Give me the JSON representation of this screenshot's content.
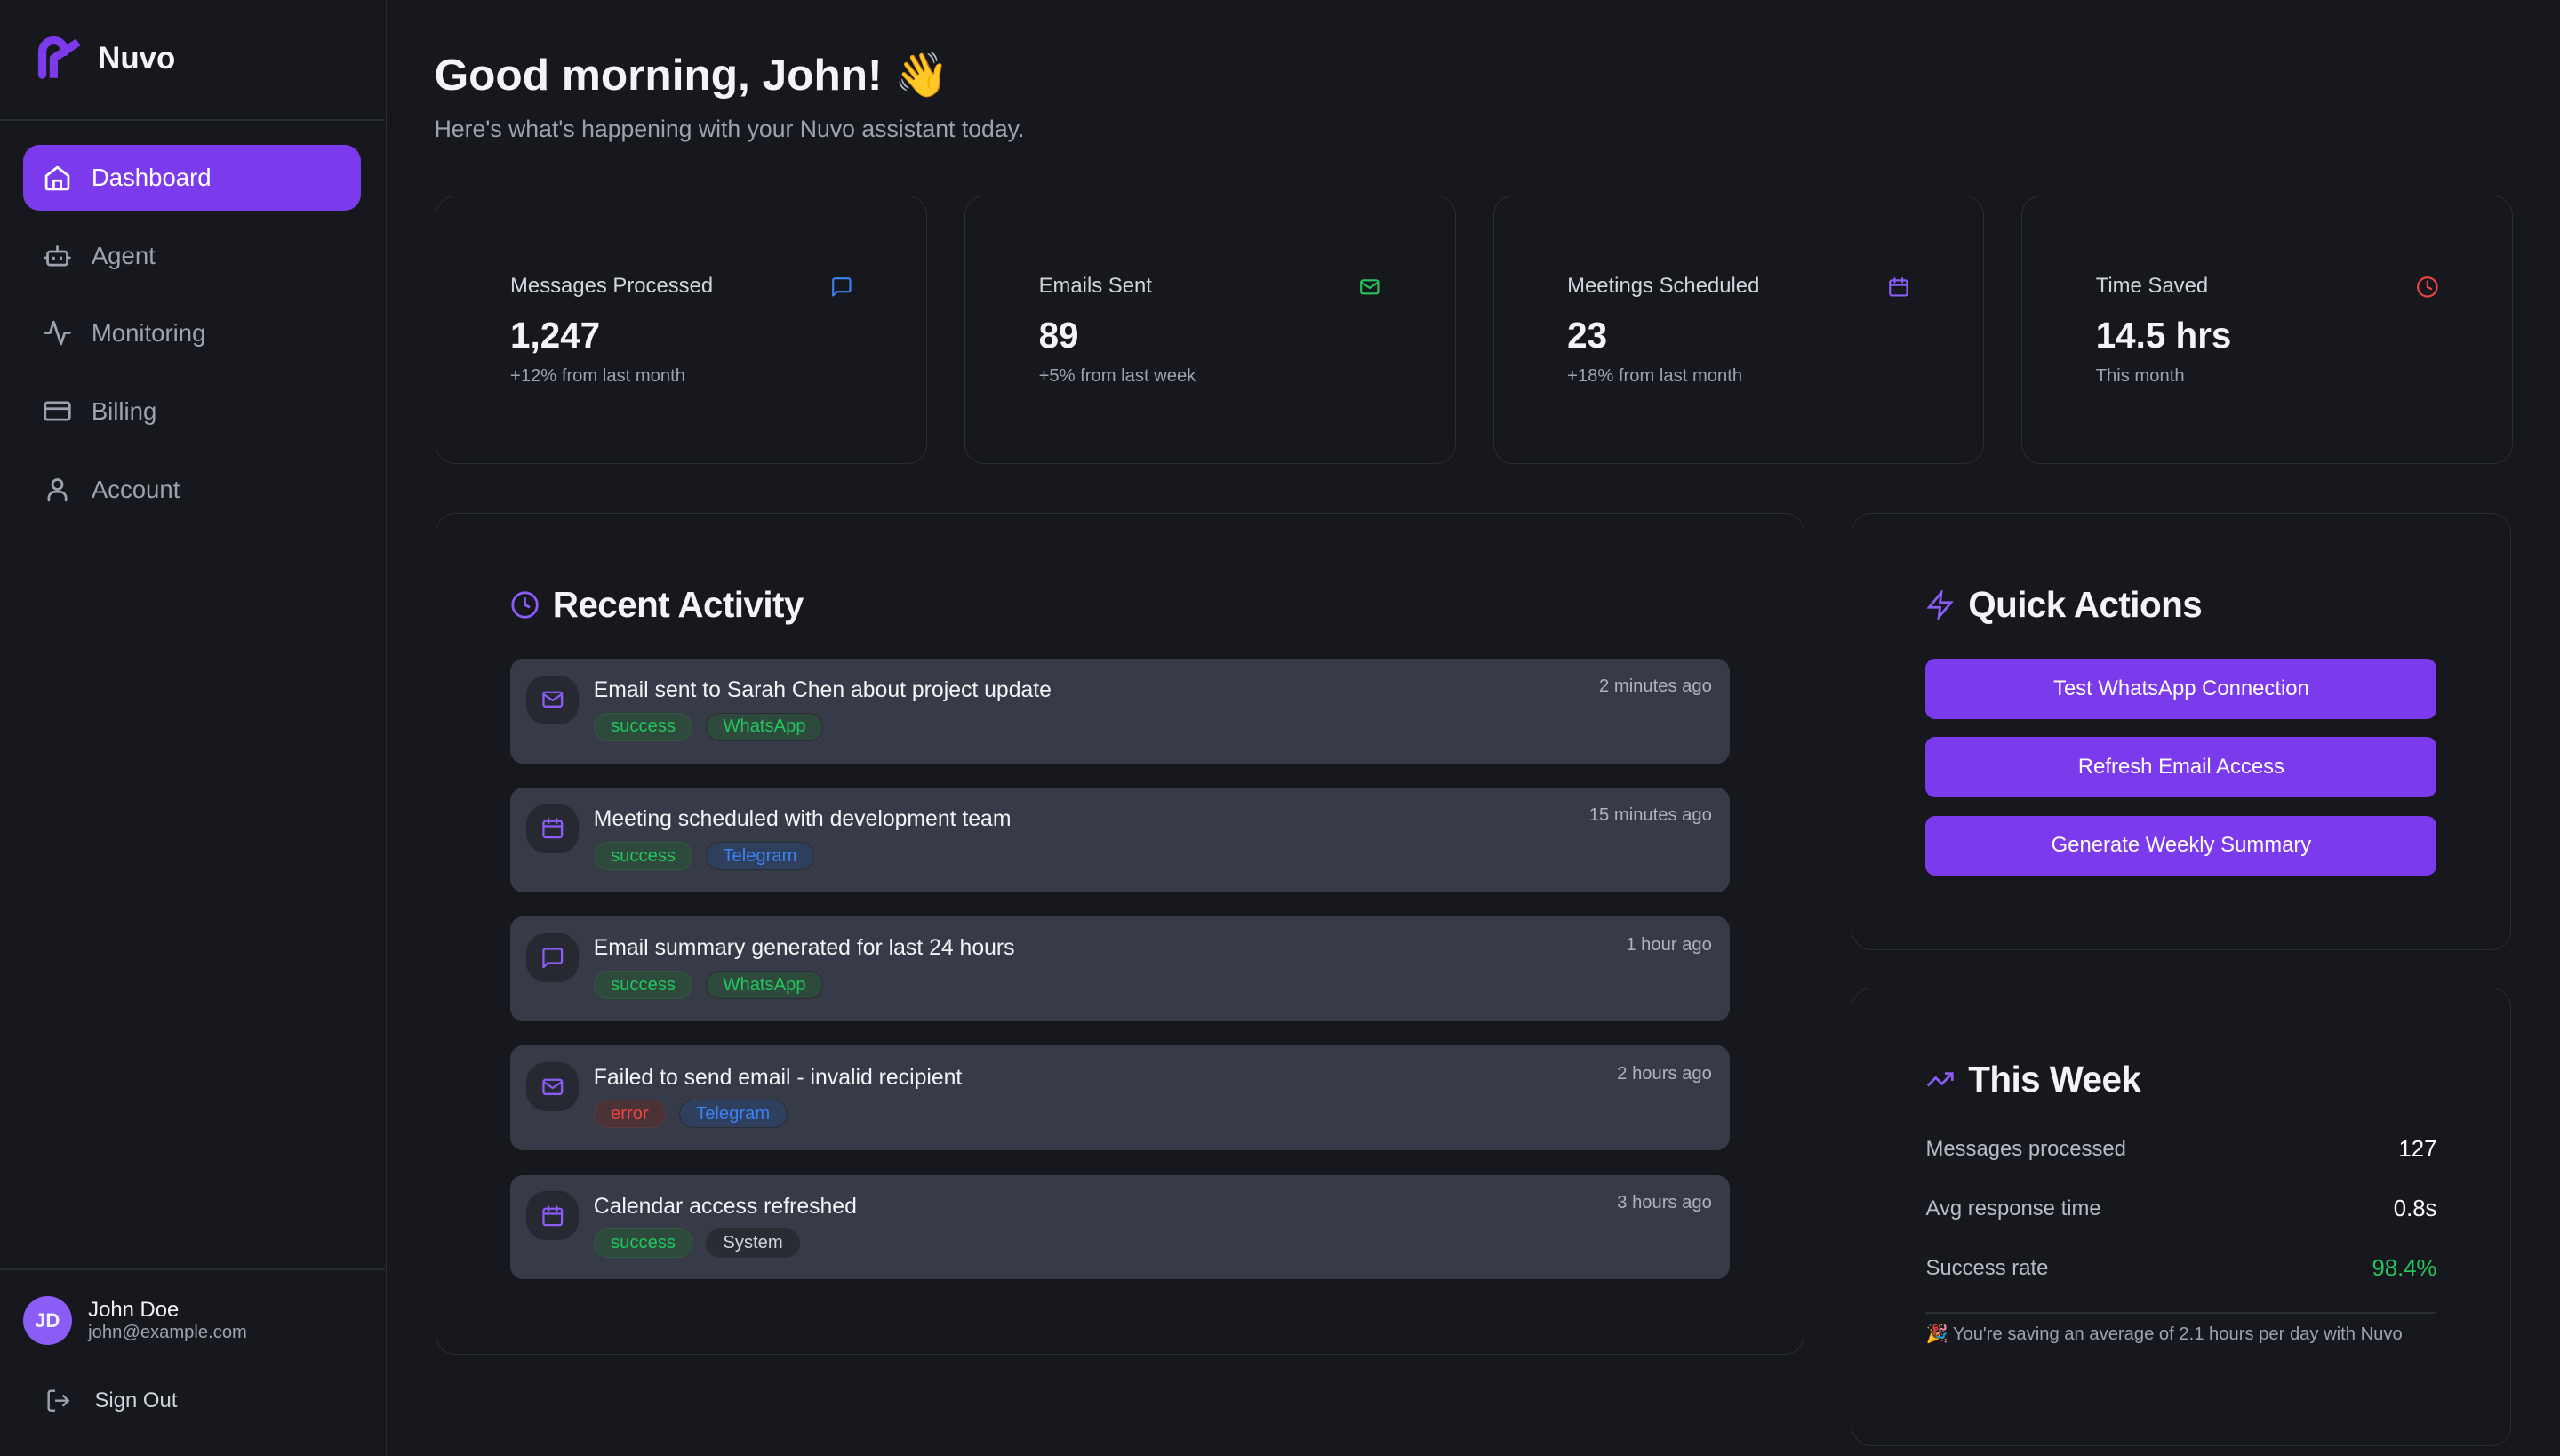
{
  "brand": {
    "name": "Nuvo",
    "accent": "#7c3aed"
  },
  "nav": [
    {
      "label": "Dashboard",
      "icon": "home-icon",
      "active": true
    },
    {
      "label": "Agent",
      "icon": "bot-icon"
    },
    {
      "label": "Monitoring",
      "icon": "activity-icon"
    },
    {
      "label": "Billing",
      "icon": "credit-card-icon"
    },
    {
      "label": "Account",
      "icon": "user-icon"
    }
  ],
  "user": {
    "initials": "JD",
    "name": "John Doe",
    "email": "john@example.com",
    "signout": "Sign Out"
  },
  "header": {
    "title": "Good morning, John! 👋",
    "subtitle": "Here's what's happening with your Nuvo assistant today."
  },
  "stats": [
    {
      "label": "Messages Processed",
      "value": "1,247",
      "sub": "+12% from last month",
      "icon": "message-icon",
      "color": "#3b82f6"
    },
    {
      "label": "Emails Sent",
      "value": "89",
      "sub": "+5% from last week",
      "icon": "mail-icon",
      "color": "#22c55e"
    },
    {
      "label": "Meetings Scheduled",
      "value": "23",
      "sub": "+18% from last month",
      "icon": "calendar-icon",
      "color": "#8b5cf6"
    },
    {
      "label": "Time Saved",
      "value": "14.5 hrs",
      "sub": "This month",
      "icon": "clock-icon",
      "color": "#ef4444"
    }
  ],
  "activity": {
    "title": "Recent Activity",
    "items": [
      {
        "text": "Email sent to Sarah Chen about project update",
        "time": "2 minutes ago",
        "status": "success",
        "channel": "WhatsApp",
        "icon": "mail"
      },
      {
        "text": "Meeting scheduled with development team",
        "time": "15 minutes ago",
        "status": "success",
        "channel": "Telegram",
        "icon": "calendar"
      },
      {
        "text": "Email summary generated for last 24 hours",
        "time": "1 hour ago",
        "status": "success",
        "channel": "WhatsApp",
        "icon": "message"
      },
      {
        "text": "Failed to send email - invalid recipient",
        "time": "2 hours ago",
        "status": "error",
        "channel": "Telegram",
        "icon": "mail"
      },
      {
        "text": "Calendar access refreshed",
        "time": "3 hours ago",
        "status": "success",
        "channel": "System",
        "icon": "calendar"
      }
    ]
  },
  "quick": {
    "title": "Quick Actions",
    "buttons": [
      "Test WhatsApp Connection",
      "Refresh Email Access",
      "Generate Weekly Summary"
    ]
  },
  "week": {
    "title": "This Week",
    "rows": [
      {
        "label": "Messages processed",
        "value": "127"
      },
      {
        "label": "Avg response time",
        "value": "0.8s"
      },
      {
        "label": "Success rate",
        "value": "98.4%"
      }
    ],
    "note": "🎉 You're saving an average of 2.1 hours per day with Nuvo"
  }
}
